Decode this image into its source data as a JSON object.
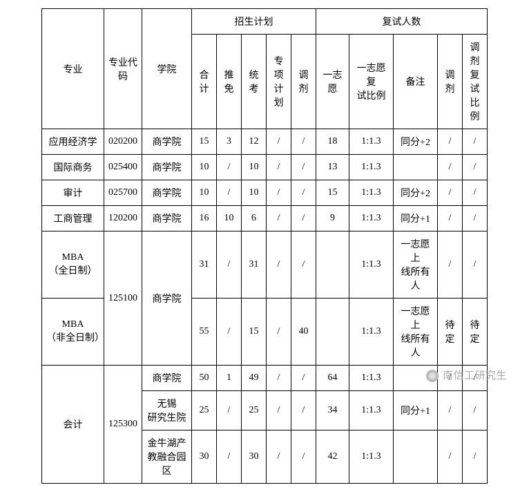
{
  "headers": {
    "major": "专业",
    "code": "专业代\n码",
    "college": "学院",
    "plan": "招生计划",
    "plan_total": "合 计",
    "plan_exempt": "推免",
    "plan_exam": "统考",
    "plan_special": "专项\n计划",
    "plan_adjust": "调剂",
    "retest": "复试人数",
    "first_choice": "一志愿",
    "first_ratio": "一志愿复\n试比例",
    "remark": "备注",
    "adjust": "调剂",
    "adjust_ratio": "调剂\n复试\n比例"
  },
  "col_widths": [
    "90",
    "55",
    "72",
    "36",
    "36",
    "36",
    "36",
    "36",
    "48",
    "64",
    "64",
    "36",
    "36"
  ],
  "rows": [
    {
      "major": "应用经济学",
      "code": "020200",
      "college": "商学院",
      "total": "15",
      "exempt": "3",
      "exam": "12",
      "special": "/",
      "padj": "/",
      "first": "18",
      "ratio": "1:1.3",
      "remark": "同分+2",
      "adj": "/",
      "adjr": "/"
    },
    {
      "major": "国际商务",
      "code": "025400",
      "college": "商学院",
      "total": "10",
      "exempt": "/",
      "exam": "10",
      "special": "/",
      "padj": "/",
      "first": "13",
      "ratio": "1:1.3",
      "remark": "",
      "adj": "/",
      "adjr": "/"
    },
    {
      "major": "审计",
      "code": "025700",
      "college": "商学院",
      "total": "10",
      "exempt": "/",
      "exam": "10",
      "special": "/",
      "padj": "/",
      "first": "15",
      "ratio": "1:1.3",
      "remark": "同分+2",
      "adj": "/",
      "adjr": "/"
    },
    {
      "major": "工商管理",
      "code": "120200",
      "college": "商学院",
      "total": "16",
      "exempt": "10",
      "exam": "6",
      "special": "/",
      "padj": "/",
      "first": "9",
      "ratio": "1:1.3",
      "remark": "同分+1",
      "adj": "/",
      "adjr": "/"
    }
  ],
  "mba": {
    "code": "125100",
    "college": "商学院",
    "r1": {
      "major": "MBA\n（全日制）",
      "total": "31",
      "exempt": "/",
      "exam": "31",
      "special": "/",
      "padj": "/",
      "first": "",
      "ratio": "1:1.3",
      "remark": "一志愿上\n线所有人",
      "adj": "/",
      "adjr": "/"
    },
    "r2": {
      "major": "MBA\n（非全日制）",
      "total": "55",
      "exempt": "/",
      "exam": "15",
      "special": "/",
      "padj": "40",
      "first": "",
      "ratio": "1:1.3",
      "remark": "一志愿上\n线所有人",
      "adj": "待定",
      "adjr": "待定"
    }
  },
  "acc": {
    "major": "会计",
    "code": "125300",
    "r1": {
      "college": "商学院",
      "total": "50",
      "exempt": "1",
      "exam": "49",
      "special": "/",
      "padj": "/",
      "first": "64",
      "ratio": "1:1.3",
      "remark": "",
      "adj": "/",
      "adjr": "/"
    },
    "r2": {
      "college": "无锡\n研究生院",
      "total": "25",
      "exempt": "/",
      "exam": "25",
      "special": "/",
      "padj": "/",
      "first": "34",
      "ratio": "1:1.3",
      "remark": "同分+1",
      "adj": "/",
      "adjr": "/"
    },
    "r3": {
      "college": "金牛湖产\n教融合园\n区",
      "total": "30",
      "exempt": "/",
      "exam": "30",
      "special": "/",
      "padj": "/",
      "first": "42",
      "ratio": "1:1.3",
      "remark": "",
      "adj": "/",
      "adjr": "/"
    }
  },
  "watermark": "南信工研究生"
}
